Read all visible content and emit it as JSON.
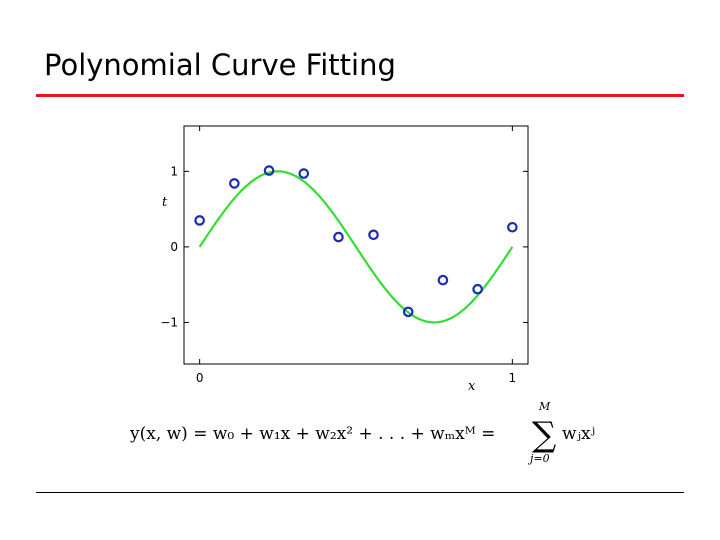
{
  "slide": {
    "title": "Polynomial Curve Fitting",
    "title_rule_color": "#e8161b",
    "bottom_rule_color": "#000000"
  },
  "chart_data": {
    "type": "scatter",
    "title": "",
    "xlabel": "x",
    "ylabel": "t",
    "xlim": [
      -0.05,
      1.05
    ],
    "ylim": [
      -1.55,
      1.6
    ],
    "xticks": [
      0,
      1
    ],
    "xtick_labels": [
      "0",
      "1"
    ],
    "yticks": [
      -1,
      0,
      1
    ],
    "ytick_labels": [
      "−1",
      "0",
      "1"
    ],
    "grid": false,
    "legend": "none",
    "series": [
      {
        "kind": "curve",
        "function": "sin(2*pi*x)",
        "color": "#33dd33",
        "x": [
          0,
          0.05,
          0.1,
          0.15,
          0.2,
          0.25,
          0.3,
          0.35,
          0.4,
          0.45,
          0.5,
          0.55,
          0.6,
          0.65,
          0.7,
          0.75,
          0.8,
          0.85,
          0.9,
          0.95,
          1.0
        ],
        "y": [
          0,
          0.309,
          0.588,
          0.809,
          0.951,
          1.0,
          0.951,
          0.809,
          0.588,
          0.309,
          0,
          -0.309,
          -0.588,
          -0.809,
          -0.951,
          -1.0,
          -0.951,
          -0.809,
          -0.588,
          -0.309,
          0
        ]
      },
      {
        "kind": "points",
        "marker": "open-circle",
        "color": "#1a2fb0",
        "x": [
          0,
          0.111,
          0.222,
          0.333,
          0.444,
          0.556,
          0.667,
          0.778,
          0.889,
          1.0
        ],
        "y": [
          0.35,
          0.84,
          1.01,
          0.97,
          0.13,
          0.16,
          -0.86,
          -0.44,
          -0.56,
          0.26
        ]
      }
    ]
  },
  "equation": {
    "main": "y(x, w) = w₀ + w₁x + w₂x² + . . . + wₘxᴹ =",
    "sum_upper": "M",
    "sigma": "∑",
    "sum_lower": "j=0",
    "tail": "wⱼxʲ"
  }
}
